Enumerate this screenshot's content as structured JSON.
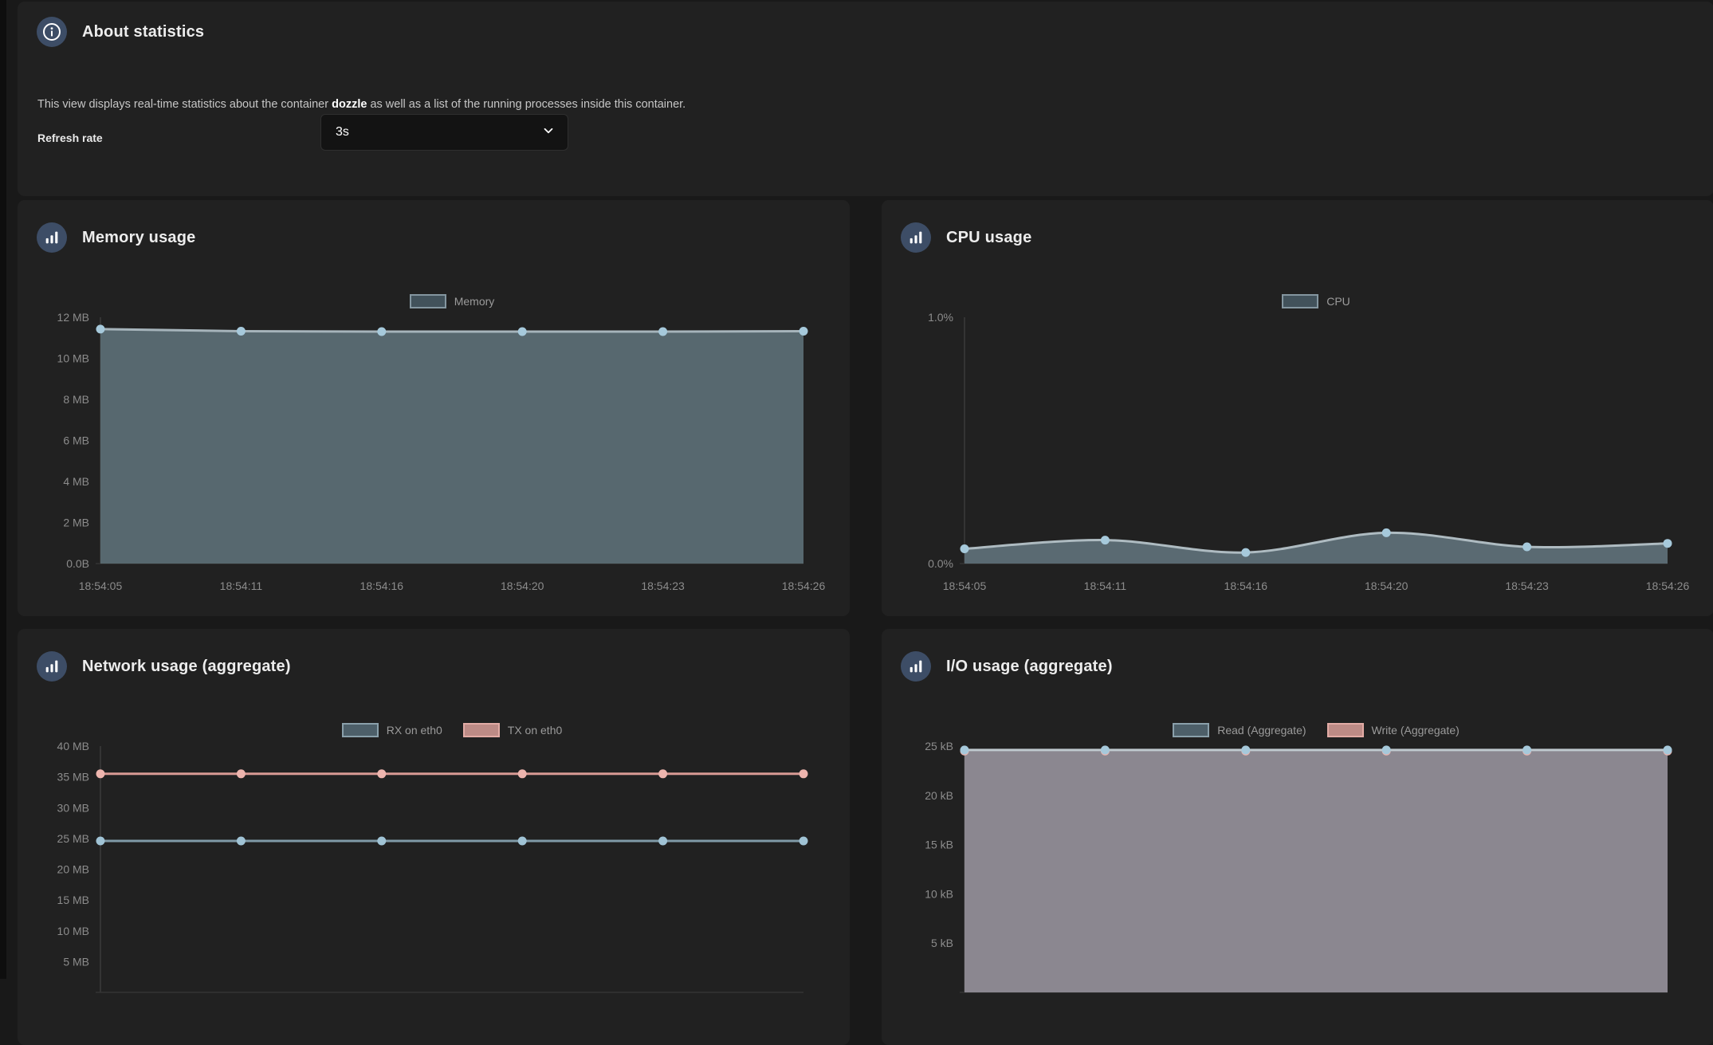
{
  "colors": {
    "page_bg": "#191919",
    "panel_bg": "#212121",
    "icon_circle": "#3d4d66",
    "tick_text": "#8c8c8c",
    "axis_line": "#3a3a3a"
  },
  "about": {
    "title": "About statistics",
    "description_prefix": "This view displays real-time statistics about the container ",
    "description_bold": "dozzle",
    "description_suffix": " as well as a list of the running processes inside this container.",
    "refresh_label": "Refresh rate",
    "refresh_value": "3s"
  },
  "chart_data": [
    {
      "id": "memory",
      "type": "area",
      "title": "Memory usage",
      "x": [
        "18:54:05",
        "18:54:11",
        "18:54:16",
        "18:54:20",
        "18:54:23",
        "18:54:26"
      ],
      "x_labels_visible": true,
      "ylim": [
        0,
        12
      ],
      "yticks": [
        {
          "v": 12,
          "label": "12 MB"
        },
        {
          "v": 10,
          "label": "10 MB"
        },
        {
          "v": 8,
          "label": "8 MB"
        },
        {
          "v": 6,
          "label": "6 MB"
        },
        {
          "v": 4,
          "label": "4 MB"
        },
        {
          "v": 2,
          "label": "2 MB"
        },
        {
          "v": 0,
          "label": "0.0B"
        }
      ],
      "legend_position": "top",
      "grid": false,
      "series": [
        {
          "name": "Memory",
          "values": [
            11.42,
            11.32,
            11.3,
            11.3,
            11.3,
            11.32
          ],
          "smooth": false,
          "line": "#a6b4bb",
          "fill": "#57686f",
          "marker": "#a6c9db",
          "legend_fill": "#42525b",
          "legend_border": "#8496a0"
        }
      ]
    },
    {
      "id": "cpu",
      "type": "area",
      "title": "CPU usage",
      "x": [
        "18:54:05",
        "18:54:11",
        "18:54:16",
        "18:54:20",
        "18:54:23",
        "18:54:26"
      ],
      "x_labels_visible": true,
      "ylim": [
        0,
        1
      ],
      "yticks": [
        {
          "v": 1,
          "label": "1.0%"
        },
        {
          "v": 0,
          "label": "0.0%"
        }
      ],
      "legend_position": "top",
      "grid": false,
      "series": [
        {
          "name": "CPU",
          "values": [
            0.06,
            0.095,
            0.045,
            0.125,
            0.068,
            0.082
          ],
          "smooth": true,
          "line": "#aebbc1",
          "fill": "#5a6a72",
          "marker": "#a6c9db",
          "legend_fill": "#42525b",
          "legend_border": "#8496a0"
        }
      ]
    },
    {
      "id": "network",
      "type": "line",
      "title": "Network usage (aggregate)",
      "x": [
        "18:54:05",
        "18:54:11",
        "18:54:16",
        "18:54:20",
        "18:54:23",
        "18:54:26"
      ],
      "x_labels_visible": false,
      "ylim": [
        0,
        40
      ],
      "yticks": [
        {
          "v": 40,
          "label": "40 MB"
        },
        {
          "v": 35,
          "label": "35 MB"
        },
        {
          "v": 30,
          "label": "30 MB"
        },
        {
          "v": 25,
          "label": "25 MB"
        },
        {
          "v": 20,
          "label": "20 MB"
        },
        {
          "v": 15,
          "label": "15 MB"
        },
        {
          "v": 10,
          "label": "10 MB"
        },
        {
          "v": 5,
          "label": "5 MB"
        }
      ],
      "legend_position": "top",
      "grid": false,
      "series": [
        {
          "name": "RX on eth0",
          "values": [
            24.6,
            24.6,
            24.6,
            24.6,
            24.6,
            24.6
          ],
          "smooth": false,
          "line": "#809aa8",
          "fill": null,
          "marker": "#a0c3d5",
          "legend_fill": "#4d5f69",
          "legend_border": "#8aa0ab"
        },
        {
          "name": "TX on eth0",
          "values": [
            35.5,
            35.5,
            35.5,
            35.5,
            35.5,
            35.5
          ],
          "smooth": false,
          "line": "#d89a94",
          "fill": null,
          "marker": "#eeb5ae",
          "legend_fill": "#bd8b86",
          "legend_border": "#e2aba5"
        }
      ]
    },
    {
      "id": "io",
      "type": "area",
      "title": "I/O usage (aggregate)",
      "x": [
        "18:54:05",
        "18:54:11",
        "18:54:16",
        "18:54:20",
        "18:54:23",
        "18:54:26"
      ],
      "x_labels_visible": false,
      "ylim": [
        0,
        25
      ],
      "yticks": [
        {
          "v": 25,
          "label": "25 kB"
        },
        {
          "v": 20,
          "label": "20 kB"
        },
        {
          "v": 15,
          "label": "15 kB"
        },
        {
          "v": 10,
          "label": "10 kB"
        },
        {
          "v": 5,
          "label": "5 kB"
        }
      ],
      "legend_position": "top",
      "grid": false,
      "series": [
        {
          "name": "Read (Aggregate)",
          "values": [
            24.6,
            24.6,
            24.6,
            24.6,
            24.6,
            24.6
          ],
          "smooth": false,
          "line": "#bfc9ce",
          "fill": "#8b8790",
          "marker": "#a6c9db",
          "legend_fill": "#4d5f69",
          "legend_border": "#8aa0ab"
        },
        {
          "name": "Write (Aggregate)",
          "values": [
            24.5,
            24.5,
            24.5,
            24.5,
            24.5,
            24.5
          ],
          "smooth": false,
          "line": "#d0a19c",
          "fill": null,
          "marker": "#e8b3ae",
          "legend_fill": "#bd8b86",
          "legend_border": "#e2aba5"
        }
      ]
    }
  ]
}
